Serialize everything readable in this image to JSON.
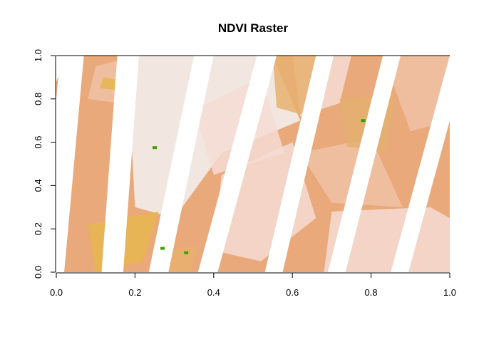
{
  "chart_data": {
    "type": "heatmap",
    "title": "NDVI Raster",
    "xlabel": "",
    "ylabel": "",
    "xlim": [
      0,
      1
    ],
    "ylim": [
      0,
      1
    ],
    "x_ticks": [
      "0.0",
      "0.2",
      "0.4",
      "0.6",
      "0.8",
      "1.0"
    ],
    "y_ticks": [
      "0.0",
      "0.2",
      "0.4",
      "0.6",
      "0.8",
      "1.0"
    ],
    "legend": "none",
    "color_scale": [
      "#e6b650",
      "#e9a97a",
      "#f0c2a6",
      "#f4dcd3",
      "#f2f2f2"
    ],
    "no_data_stripes": {
      "description": "diagonal no-data gaps crossing the raster",
      "color": "#ffffff"
    },
    "highlights": [
      {
        "x": 0.25,
        "y": 0.575,
        "color": "#3fa000"
      },
      {
        "x": 0.27,
        "y": 0.11,
        "color": "#3fa000"
      },
      {
        "x": 0.33,
        "y": 0.09,
        "color": "#3fa000"
      },
      {
        "x": 0.78,
        "y": 0.7,
        "color": "#3fa000"
      }
    ]
  }
}
